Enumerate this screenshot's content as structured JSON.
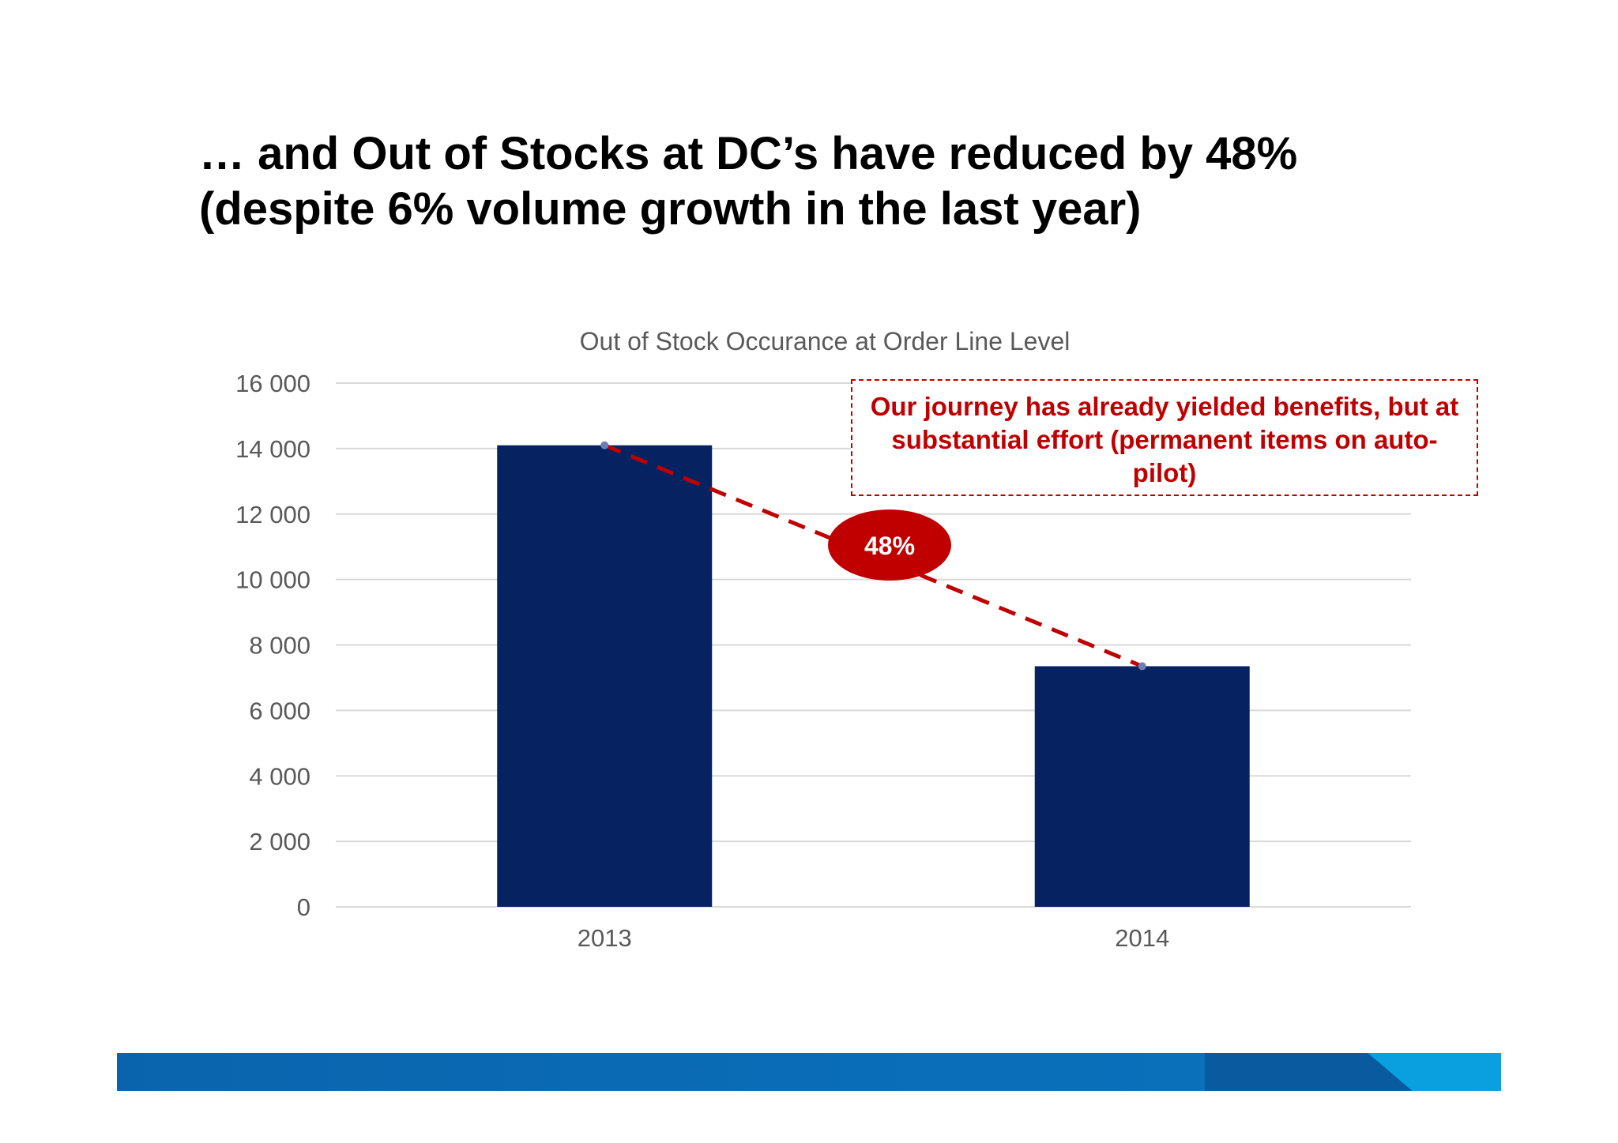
{
  "slide": {
    "title_line1": "… and Out of Stocks at DC’s have reduced by 48%",
    "title_line2": "(despite 6% volume growth in the last year)",
    "callout": "Our journey has already yielded benefits, but at substantial effort (permanent items on auto-pilot)",
    "badge": "48%"
  },
  "colors": {
    "bar": "#062261",
    "trend": "#c00000",
    "badge": "#c00000",
    "grid": "#d9d9d9",
    "axis_text": "#595959"
  },
  "chart_data": {
    "type": "bar",
    "title": "Out of Stock Occurance at Order Line Level",
    "categories": [
      "2013",
      "2014"
    ],
    "series": [
      {
        "values": [
          14100,
          7350
        ]
      }
    ],
    "ylim": [
      0,
      16000
    ],
    "yticks": [
      0,
      2000,
      4000,
      6000,
      8000,
      10000,
      12000,
      14000,
      16000
    ],
    "ytick_labels": [
      "0",
      "2 000",
      "4 000",
      "6 000",
      "8 000",
      "10 000",
      "12 000",
      "14 000",
      "16 000"
    ],
    "grid": true,
    "legend": "none",
    "annotation": {
      "type": "dashed-trend-line",
      "label": "48%"
    }
  }
}
